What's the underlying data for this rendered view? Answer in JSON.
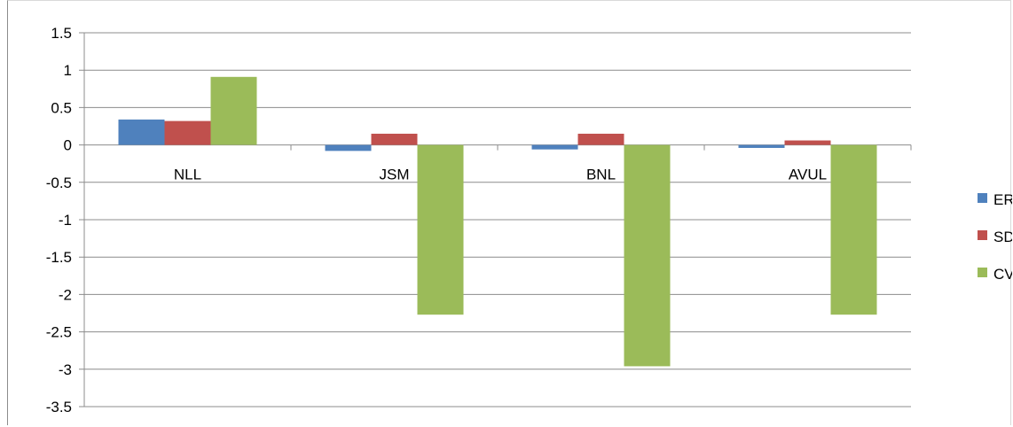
{
  "chart_data": {
    "type": "bar",
    "categories": [
      "NLL",
      "JSM",
      "BNL",
      "AVUL"
    ],
    "series": [
      {
        "name": "ER",
        "color": "#4F81BD",
        "values": [
          0.34,
          -0.08,
          -0.06,
          -0.04
        ]
      },
      {
        "name": "SD",
        "color": "#C0504D",
        "values": [
          0.32,
          0.15,
          0.15,
          0.06
        ]
      },
      {
        "name": "CV",
        "color": "#9BBB59",
        "values": [
          0.91,
          -2.27,
          -2.96,
          -2.27
        ]
      }
    ],
    "ylim": [
      -3.5,
      1.5
    ],
    "yticks": [
      "1.5",
      "1",
      "0.5",
      "0",
      "-0.5",
      "-1",
      "-1.5",
      "-2",
      "-2.5",
      "-3",
      "-3.5"
    ],
    "ytick_values": [
      1.5,
      1,
      0.5,
      0,
      -0.5,
      -1,
      -1.5,
      -2,
      -2.5,
      -3,
      -3.5
    ],
    "grid": true,
    "legend": "right",
    "gridline_color": "#8c8c8c"
  }
}
